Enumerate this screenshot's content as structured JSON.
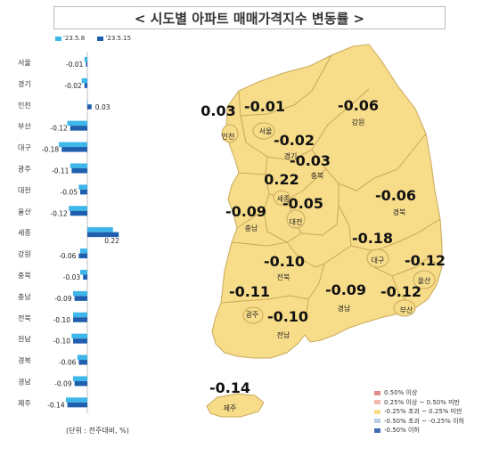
{
  "title": "< 시도별 아파트 매매가격지수 변동률 >",
  "unit_note": "(단위 : 전주대비, %)",
  "colors": {
    "prev": "#3db6ea",
    "curr": "#1f5fae",
    "map_fill": "#f7dc8a",
    "map_stroke": "#c9a95a"
  },
  "chart_data": {
    "type": "bar",
    "orientation": "horizontal",
    "categories": [
      "서울",
      "경기",
      "인천",
      "부산",
      "대구",
      "광주",
      "대전",
      "울산",
      "세종",
      "강원",
      "충북",
      "충남",
      "전북",
      "전남",
      "경북",
      "경남",
      "제주"
    ],
    "series": [
      {
        "name": "'23.5.8",
        "values": [
          -0.02,
          -0.04,
          0.0,
          -0.14,
          -0.2,
          -0.12,
          -0.06,
          -0.13,
          0.18,
          -0.05,
          -0.05,
          -0.1,
          -0.1,
          -0.11,
          -0.07,
          -0.1,
          -0.15
        ]
      },
      {
        "name": "'23.5.15",
        "values": [
          -0.01,
          -0.02,
          0.03,
          -0.12,
          -0.18,
          -0.11,
          -0.05,
          -0.12,
          0.22,
          -0.06,
          -0.03,
          -0.09,
          -0.1,
          -0.1,
          -0.06,
          -0.09,
          -0.14
        ]
      }
    ],
    "xlim": [
      -0.3,
      0.3
    ]
  },
  "map": {
    "regions": [
      {
        "name": "서울",
        "value": "-0.01"
      },
      {
        "name": "인천",
        "value": "0.03"
      },
      {
        "name": "경기",
        "value": "-0.02"
      },
      {
        "name": "강원",
        "value": "-0.06"
      },
      {
        "name": "충북",
        "value": "-0.03"
      },
      {
        "name": "세종",
        "value": "0.22"
      },
      {
        "name": "충남",
        "value": "-0.09"
      },
      {
        "name": "대전",
        "value": "-0.05"
      },
      {
        "name": "경북",
        "value": "-0.06"
      },
      {
        "name": "대구",
        "value": "-0.18"
      },
      {
        "name": "전북",
        "value": "-0.10"
      },
      {
        "name": "울산",
        "value": "-0.12"
      },
      {
        "name": "광주",
        "value": "-0.11"
      },
      {
        "name": "경남",
        "value": "-0.09"
      },
      {
        "name": "부산",
        "value": "-0.12"
      },
      {
        "name": "전남",
        "value": "-0.10"
      },
      {
        "name": "제주",
        "value": "-0.14"
      }
    ],
    "legend": [
      {
        "label": "0.50% 이상",
        "color": "#e58a8a"
      },
      {
        "label": "0.25% 이상 ~ 0.50% 미만",
        "color": "#f2b8b0"
      },
      {
        "label": "-0.25% 초과 ~ 0.25% 미만",
        "color": "#f7dc8a"
      },
      {
        "label": "-0.50% 초과 ~ -0.25% 이하",
        "color": "#b9cde6"
      },
      {
        "label": "-0.50% 이하",
        "color": "#3f6cb5"
      }
    ]
  }
}
